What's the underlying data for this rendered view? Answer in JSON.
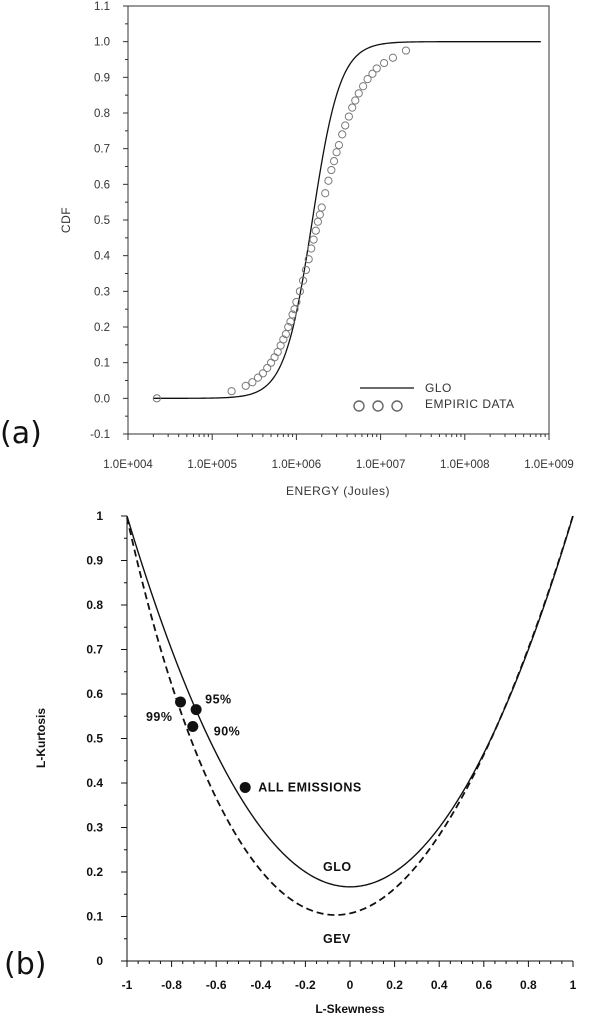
{
  "panels": {
    "a": {
      "label": "(a)"
    },
    "b": {
      "label": "(b)"
    }
  },
  "chart_data": [
    {
      "type": "line",
      "xlabel": "ENERGY (Joules)",
      "ylabel": "CDF",
      "xscale": "log",
      "xlim": [
        10000,
        1000000000
      ],
      "ylim": [
        -0.1,
        1.1
      ],
      "x_tick_labels": [
        "1.0E+004",
        "1.0E+005",
        "1.0E+006",
        "1.0E+007",
        "1.0E+008",
        "1.0E+009"
      ],
      "y_tick_labels": [
        "-0.1",
        "0.0",
        "0.1",
        "0.2",
        "0.3",
        "0.4",
        "0.5",
        "0.6",
        "0.7",
        "0.8",
        "0.9",
        "1.0",
        "1.1"
      ],
      "legend_position": "bottom-right",
      "legend": [
        "GLO",
        "EMPIRIC DATA"
      ],
      "grid": false,
      "series": [
        {
          "name": "GLO",
          "style": "solid-line",
          "x": [
            20000,
            50000,
            100000,
            200000,
            300000,
            500000,
            700000,
            1000000,
            1500000,
            2000000,
            3000000,
            5000000,
            7000000,
            10000000,
            20000000,
            50000000,
            100000000,
            800000000
          ],
          "y": [
            0.0,
            0.002,
            0.008,
            0.025,
            0.05,
            0.12,
            0.2,
            0.32,
            0.48,
            0.6,
            0.74,
            0.87,
            0.92,
            0.955,
            0.99,
            0.998,
            1.0,
            1.0
          ]
        },
        {
          "name": "EMPIRIC DATA",
          "style": "open-circle",
          "x": [
            22000,
            170000,
            250000,
            300000,
            350000,
            400000,
            450000,
            500000,
            550000,
            600000,
            650000,
            700000,
            750000,
            800000,
            850000,
            900000,
            950000,
            1000000,
            1100000,
            1200000,
            1300000,
            1400000,
            1500000,
            1600000,
            1700000,
            1800000,
            1900000,
            2000000,
            2200000,
            2400000,
            2600000,
            2800000,
            3000000,
            3200000,
            3500000,
            3800000,
            4200000,
            4600000,
            5000000,
            5500000,
            6200000,
            7000000,
            8000000,
            9000000,
            11000000,
            14000000,
            20000000
          ],
          "y": [
            0.0,
            0.02,
            0.035,
            0.045,
            0.058,
            0.07,
            0.085,
            0.1,
            0.115,
            0.13,
            0.148,
            0.165,
            0.18,
            0.2,
            0.215,
            0.235,
            0.25,
            0.27,
            0.3,
            0.33,
            0.36,
            0.39,
            0.42,
            0.445,
            0.47,
            0.495,
            0.515,
            0.535,
            0.575,
            0.61,
            0.64,
            0.665,
            0.69,
            0.71,
            0.74,
            0.765,
            0.79,
            0.815,
            0.835,
            0.855,
            0.875,
            0.895,
            0.91,
            0.925,
            0.94,
            0.955,
            0.975
          ]
        }
      ]
    },
    {
      "type": "line",
      "xlabel": "L-Skewness",
      "ylabel": "L-Kurtosis",
      "xlim": [
        -1,
        1
      ],
      "ylim": [
        0,
        1
      ],
      "x_tick_labels": [
        "-1",
        "-0.8",
        "-0.6",
        "-0.4",
        "-0.2",
        "0",
        "0.2",
        "0.4",
        "0.6",
        "0.8",
        "1"
      ],
      "y_tick_labels": [
        "0",
        "0.1",
        "0.2",
        "0.3",
        "0.4",
        "0.5",
        "0.6",
        "0.7",
        "0.8",
        "0.9",
        "1"
      ],
      "grid": false,
      "series": [
        {
          "name": "GLO",
          "style": "solid-line",
          "formula": "tau4 = (1 + 5*tau3^2) / 6",
          "x": [
            -1,
            -0.8,
            -0.6,
            -0.4,
            -0.2,
            0,
            0.2,
            0.4,
            0.6,
            0.8,
            1
          ],
          "y": [
            1.0,
            0.7,
            0.467,
            0.3,
            0.2,
            0.167,
            0.2,
            0.3,
            0.467,
            0.7,
            1.0
          ]
        },
        {
          "name": "GEV",
          "style": "dashed-line",
          "x": [
            -1,
            -0.8,
            -0.6,
            -0.4,
            -0.2,
            -0.1,
            0,
            0.2,
            0.4,
            0.6,
            0.8,
            1
          ],
          "y": [
            1.0,
            0.62,
            0.365,
            0.205,
            0.123,
            0.107,
            0.107,
            0.151,
            0.26,
            0.43,
            0.68,
            1.0
          ]
        }
      ],
      "points": [
        {
          "label": "ALL EMISSIONS",
          "x": -0.47,
          "y": 0.39
        },
        {
          "label": "95%",
          "x": -0.69,
          "y": 0.565
        },
        {
          "label": "90%",
          "x": -0.705,
          "y": 0.527
        },
        {
          "label": "99%",
          "x": -0.76,
          "y": 0.582
        }
      ],
      "curve_labels": [
        "GLO",
        "GEV"
      ]
    }
  ]
}
